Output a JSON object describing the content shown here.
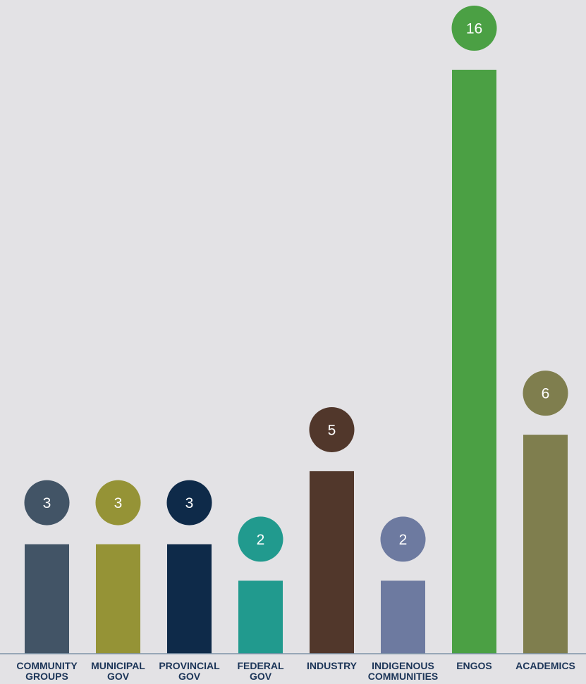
{
  "chart_data": {
    "type": "bar",
    "categories": [
      [
        "COMMUNITY",
        "GROUPS"
      ],
      [
        "MUNICIPAL",
        "GOV"
      ],
      [
        "PROVINCIAL",
        "GOV"
      ],
      [
        "FEDERAL",
        "GOV"
      ],
      [
        "INDUSTRY"
      ],
      [
        "INDIGENOUS",
        "COMMUNITIES"
      ],
      [
        "ENGOS"
      ],
      [
        "ACADEMICS"
      ]
    ],
    "values": [
      3,
      3,
      3,
      2,
      5,
      2,
      16,
      6
    ],
    "colors": [
      "#425466",
      "#959336",
      "#0e2a49",
      "#219a8e",
      "#51372b",
      "#6d7aa0",
      "#4ba044",
      "#7f7e4e"
    ],
    "ylim": [
      0,
      16
    ],
    "grid": false,
    "legend": "none",
    "axis_line_color": "#7e93a8",
    "label_color": "#1c3558"
  }
}
